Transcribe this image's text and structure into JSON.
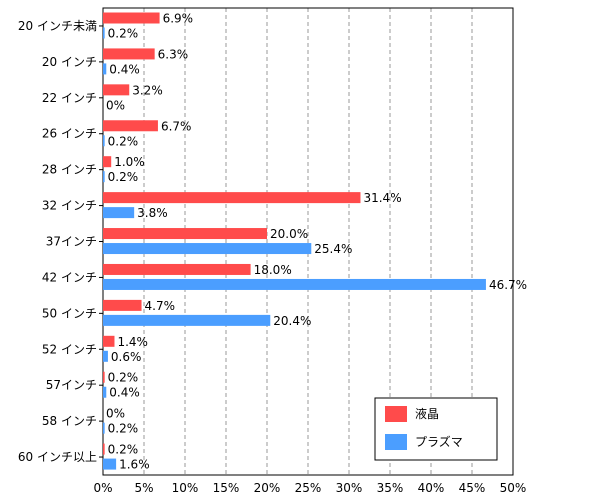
{
  "chart_data": {
    "type": "bar",
    "orientation": "horizontal",
    "categories": [
      "20 インチ未満",
      "20 インチ",
      "22 インチ",
      "26 インチ",
      "28 インチ",
      "32 インチ",
      "37インチ",
      "42 インチ",
      "50 インチ",
      "52 インチ",
      "57インチ",
      "58 インチ",
      "60 インチ以上"
    ],
    "series": [
      {
        "name": "液晶",
        "color": "#ff4b4b",
        "values": [
          6.9,
          6.3,
          3.2,
          6.7,
          1.0,
          31.4,
          20.0,
          18.0,
          4.7,
          1.4,
          0.2,
          0,
          0.2
        ],
        "labels": [
          "6.9%",
          "6.3%",
          "3.2%",
          "6.7%",
          "1.0%",
          "31.4%",
          "20.0%",
          "18.0%",
          "4.7%",
          "1.4%",
          "0.2%",
          "0%",
          "0.2%"
        ]
      },
      {
        "name": "プラズマ",
        "color": "#4b9eff",
        "values": [
          0.2,
          0.4,
          0,
          0.2,
          0.2,
          3.8,
          25.4,
          46.7,
          20.4,
          0.6,
          0.4,
          0.2,
          1.6
        ],
        "labels": [
          "0.2%",
          "0.4%",
          "0%",
          "0.2%",
          "0.2%",
          "3.8%",
          "25.4%",
          "46.7%",
          "20.4%",
          "0.6%",
          "0.4%",
          "0.2%",
          "1.6%"
        ]
      }
    ],
    "xlim": [
      0,
      50
    ],
    "xticks": [
      "0%",
      "5%",
      "10%",
      "15%",
      "20%",
      "25%",
      "30%",
      "35%",
      "40%",
      "45%",
      "50%"
    ],
    "grid": true,
    "legend_position": "bottom-right"
  }
}
